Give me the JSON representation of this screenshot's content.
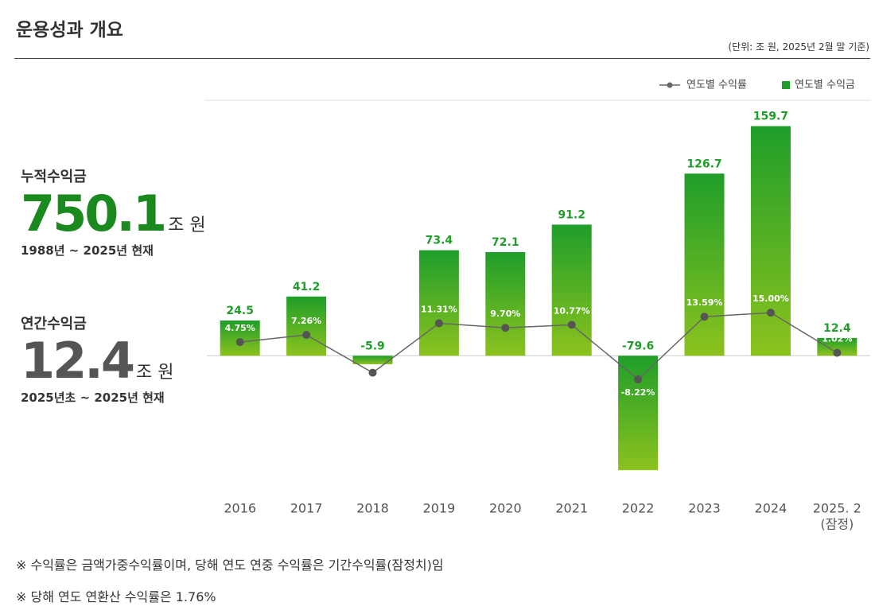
{
  "header": {
    "title": "운용성과 개요",
    "unit_note": "(단위: 조 원, 2025년 2월 말 기준)"
  },
  "summary": [
    {
      "label": "누적수익금",
      "value": 750.1,
      "unit": "조 원",
      "period": "1988년 ~ 2025년 현재",
      "color": "#1a8a1f"
    },
    {
      "label": "연간수익금",
      "value": 12.4,
      "unit": "조 원",
      "period": "2025년초 ~ 2025년 현재",
      "color": "#555555"
    }
  ],
  "chart_data": {
    "type": "bar",
    "categories": [
      "2016",
      "2017",
      "2018",
      "2019",
      "2020",
      "2021",
      "2022",
      "2023",
      "2024",
      "2025. 2"
    ],
    "category_note": "(잠정)",
    "series": [
      {
        "name": "연도별 수익금",
        "type": "bar",
        "color": "#1f9e2a",
        "gradient_end": "#8cc21e",
        "values": [
          24.5,
          41.2,
          -5.9,
          73.4,
          72.1,
          91.2,
          -79.6,
          126.7,
          159.7,
          12.4
        ]
      },
      {
        "name": "연도별 수익률",
        "type": "line",
        "axis": "y2",
        "color": "#666666",
        "values": [
          4.75,
          7.26,
          -5.9,
          11.31,
          9.7,
          10.77,
          -8.22,
          13.59,
          15.0,
          1.02
        ],
        "value_labels": [
          "4.75%",
          "7.26%",
          null,
          "11.31%",
          "9.70%",
          "10.77%",
          "-8.22%",
          "13.59%",
          "15.00%",
          "1.02%"
        ]
      }
    ],
    "ylim": [
      -90,
      170
    ],
    "y2lim": [
      -45,
      85
    ],
    "legend": "top-right"
  },
  "footnotes": [
    "※ 수익률은 금액가중수익률이며, 당해 연도 연중 수익률은 기간수익률(잠정치)임",
    "※ 당해 연도 연환산 수익률은 1.76%"
  ]
}
